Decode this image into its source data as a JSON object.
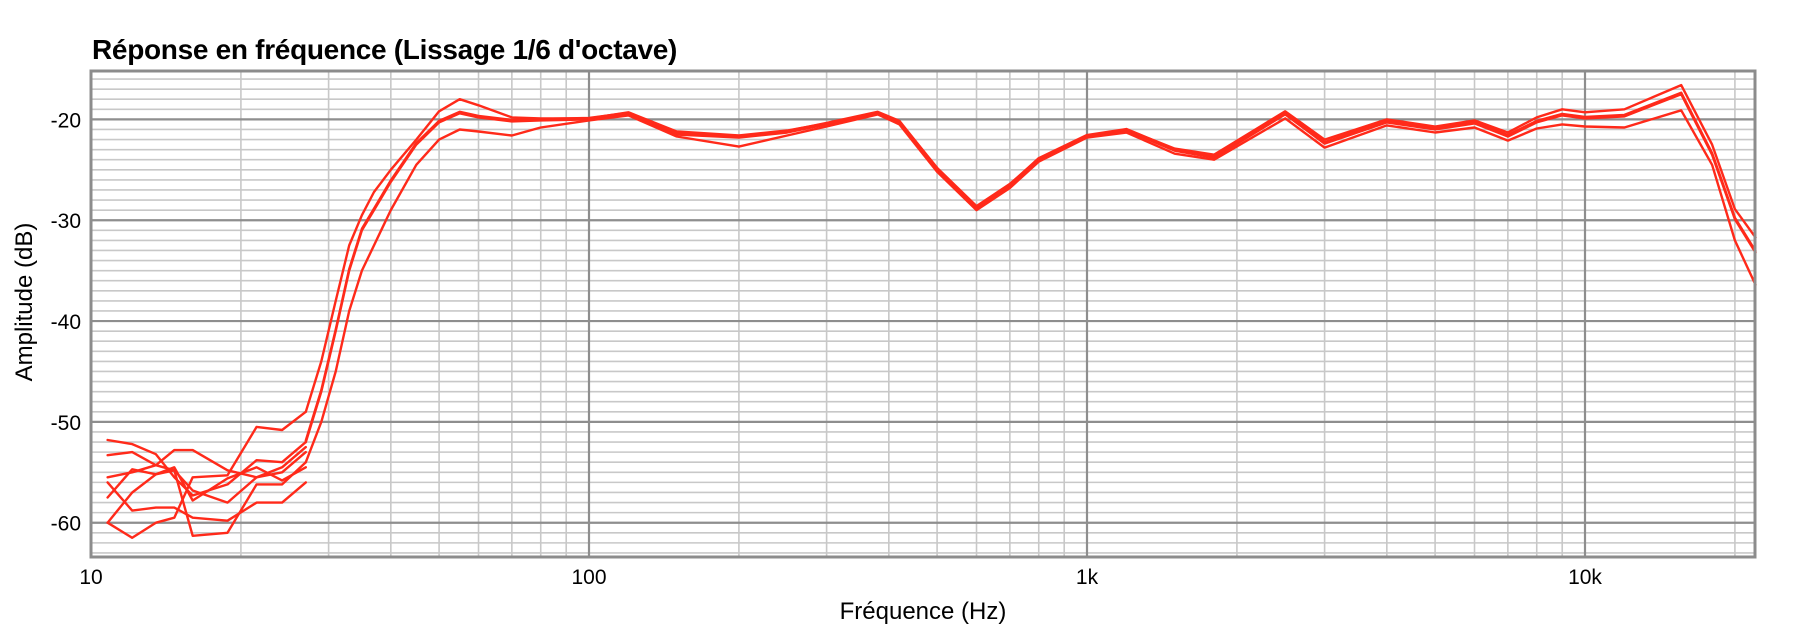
{
  "chart_data": {
    "type": "line",
    "title": "Réponse en fréquence (Lissage 1/6 d'octave)",
    "xlabel": "Fréquence (Hz)",
    "ylabel": "Amplitude (dB)",
    "xscale": "log",
    "xlim": [
      10,
      22000
    ],
    "ylim": [
      -63.4,
      -15.2
    ],
    "grid": true,
    "legend": "none",
    "line_color": "#ff2a1a",
    "x_ticks": [
      {
        "value": 10,
        "label": "10"
      },
      {
        "value": 100,
        "label": "100"
      },
      {
        "value": 1000,
        "label": "1k"
      },
      {
        "value": 10000,
        "label": "10k"
      }
    ],
    "y_ticks": [
      {
        "value": -20,
        "label": "-20"
      },
      {
        "value": -30,
        "label": "-30"
      },
      {
        "value": -40,
        "label": "-40"
      },
      {
        "value": -50,
        "label": "-50"
      },
      {
        "value": -60,
        "label": "-60"
      }
    ],
    "main_series": [
      {
        "name": "upper",
        "x": [
          27,
          29,
          31,
          33,
          35,
          37,
          40,
          45,
          50,
          55,
          60,
          70,
          80,
          100,
          120,
          150,
          200,
          250,
          300,
          380,
          420,
          500,
          600,
          700,
          800,
          1000,
          1200,
          1500,
          1800,
          2500,
          3000,
          4000,
          5000,
          6000,
          7000,
          8000,
          9000,
          10000,
          12000,
          15600,
          18000,
          20000,
          22000
        ],
        "y": [
          -49,
          -44,
          -38,
          -32.5,
          -29.5,
          -27.2,
          -25,
          -22,
          -19.2,
          -18,
          -18.6,
          -19.8,
          -19.9,
          -19.9,
          -19.3,
          -21.2,
          -21.6,
          -21.1,
          -20.4,
          -19.3,
          -20.2,
          -24.8,
          -28.6,
          -26.4,
          -23.9,
          -21.6,
          -21.0,
          -22.9,
          -23.5,
          -19.2,
          -22.0,
          -20.0,
          -20.7,
          -20.1,
          -21.3,
          -19.8,
          -19.0,
          -19.3,
          -19.0,
          -16.6,
          -22.5,
          -28.9,
          -31.7
        ]
      },
      {
        "name": "middle",
        "x": [
          27,
          29,
          31,
          33,
          35,
          37,
          40,
          45,
          50,
          55,
          60,
          70,
          80,
          100,
          120,
          150,
          200,
          250,
          300,
          380,
          420,
          500,
          600,
          700,
          800,
          1000,
          1200,
          1500,
          1800,
          2500,
          3000,
          4000,
          5000,
          6000,
          7000,
          8000,
          9000,
          10000,
          12000,
          15600,
          18000,
          20000,
          22000
        ],
        "y": [
          -52,
          -47,
          -41,
          -35,
          -31,
          -29,
          -26.2,
          -22.5,
          -20.3,
          -19.4,
          -19.8,
          -20.2,
          -20.1,
          -20.0,
          -19.5,
          -21.5,
          -21.8,
          -21.3,
          -20.5,
          -19.4,
          -20.3,
          -25.0,
          -28.8,
          -26.6,
          -24.0,
          -21.7,
          -21.1,
          -23.1,
          -23.8,
          -19.5,
          -22.4,
          -20.3,
          -21.0,
          -20.4,
          -21.7,
          -20.3,
          -19.6,
          -19.9,
          -19.7,
          -17.5,
          -23.5,
          -29.9,
          -33.2
        ]
      },
      {
        "name": "lower",
        "x": [
          27,
          29,
          31,
          33,
          35,
          37,
          40,
          45,
          50,
          55,
          60,
          70,
          80,
          100,
          120,
          150,
          200,
          250,
          300,
          380,
          420,
          500,
          600,
          700,
          800,
          1000,
          1200,
          1500,
          1800,
          2500,
          3000,
          4000,
          5000,
          6000,
          7000,
          8000,
          9000,
          10000,
          12000,
          15600,
          18000,
          20000,
          22000
        ],
        "y": [
          -54,
          -50,
          -45,
          -39,
          -35,
          -32.5,
          -29,
          -24.5,
          -22,
          -21,
          -21.2,
          -21.6,
          -20.8,
          -20.1,
          -19.6,
          -21.7,
          -22.7,
          -21.6,
          -20.7,
          -19.5,
          -20.5,
          -25.2,
          -29.0,
          -26.8,
          -24.2,
          -21.8,
          -21.3,
          -23.4,
          -24.0,
          -19.9,
          -22.8,
          -20.6,
          -21.3,
          -20.8,
          -22.1,
          -20.9,
          -20.5,
          -20.7,
          -20.8,
          -19.1,
          -24.5,
          -32.0,
          -36.4
        ]
      }
    ],
    "low_freq_series": [
      {
        "name": "lf1",
        "x": [
          10.8,
          12.1,
          13.5,
          14.7,
          16.0,
          18.8,
          21.5,
          24.2,
          27
        ],
        "y": [
          -51.8,
          -52.2,
          -53.2,
          -55.5,
          -57.3,
          -56.2,
          -53.8,
          -54.0,
          -52
        ]
      },
      {
        "name": "lf2",
        "x": [
          10.8,
          12.1,
          13.5,
          14.7,
          16.0,
          18.8,
          21.5,
          24.2,
          27
        ],
        "y": [
          -53.3,
          -53.0,
          -54.3,
          -54.8,
          -56.8,
          -58.0,
          -55.5,
          -55.0,
          -53
        ]
      },
      {
        "name": "lf3",
        "x": [
          10.8,
          12.1,
          13.5,
          14.7,
          16.0,
          18.8,
          21.5,
          24.2,
          27
        ],
        "y": [
          -55.5,
          -55.0,
          -54.3,
          -52.8,
          -52.8,
          -54.8,
          -55.5,
          -54.5,
          -52.5
        ]
      },
      {
        "name": "lf4",
        "x": [
          10.8,
          12.1,
          13.5,
          14.7,
          16.0,
          18.8,
          21.5,
          24.2,
          27
        ],
        "y": [
          -57.5,
          -54.7,
          -55.2,
          -54.5,
          -57.8,
          -55.6,
          -54.5,
          -55.8,
          -54.5
        ]
      },
      {
        "name": "lf5",
        "x": [
          10.8,
          12.1,
          13.5,
          14.7,
          16.0,
          18.8,
          21.5,
          24.2,
          27
        ],
        "y": [
          -56.0,
          -58.8,
          -58.5,
          -58.5,
          -59.5,
          -59.8,
          -58.0,
          -58.0,
          -56.0
        ]
      },
      {
        "name": "lf6",
        "x": [
          10.8,
          12.1,
          13.5,
          14.7,
          16.0,
          18.8,
          21.5,
          24.2,
          27
        ],
        "y": [
          -60.0,
          -61.5,
          -60.0,
          -59.5,
          -55.5,
          -55.3,
          -50.5,
          -50.8,
          -49
        ]
      },
      {
        "name": "lf7",
        "x": [
          10.8,
          12.1,
          13.5,
          14.7,
          16.0,
          18.8,
          21.5,
          24.2,
          27
        ],
        "y": [
          -60.0,
          -57.0,
          -55.2,
          -54.8,
          -61.3,
          -61.0,
          -56.2,
          -56.2,
          -54
        ]
      }
    ]
  }
}
